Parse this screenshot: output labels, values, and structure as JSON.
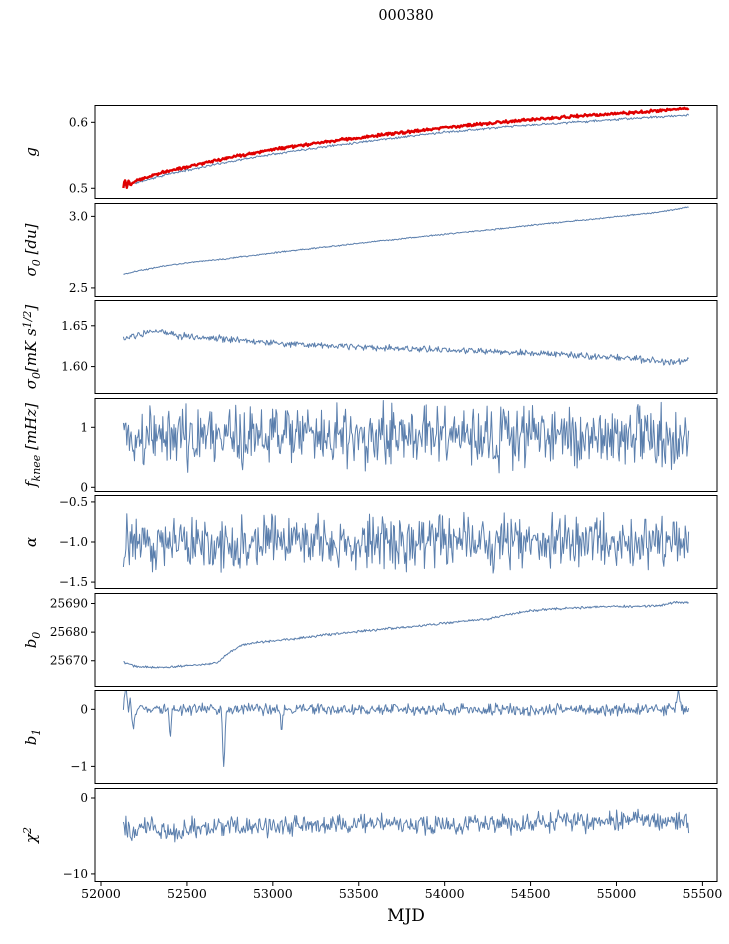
{
  "title": "000380",
  "xlabel": "MJD",
  "colors": {
    "blue": "#5b7fad",
    "red": "#e00000",
    "axis": "#000000"
  },
  "chart_data": {
    "type": "line",
    "x_start": 52130,
    "x_end": 55420,
    "n": 660,
    "xlim": [
      51965,
      55585
    ],
    "xticks": [
      {
        "v": 52000,
        "label": "52000"
      },
      {
        "v": 52500,
        "label": "52500"
      },
      {
        "v": 53000,
        "label": "53000"
      },
      {
        "v": 53500,
        "label": "53500"
      },
      {
        "v": 54000,
        "label": "54000"
      },
      {
        "v": 54500,
        "label": "54500"
      },
      {
        "v": 55000,
        "label": "55000"
      },
      {
        "v": 55500,
        "label": "55500"
      }
    ],
    "panels": [
      {
        "id": "g",
        "ylabel": "g",
        "ylim": [
          0.4845,
          0.6255
        ],
        "yticks": [
          {
            "v": 0.5,
            "label": "0.5"
          },
          {
            "v": 0.6,
            "label": "0.6"
          }
        ],
        "series": [
          {
            "name": "gain-secondary",
            "color": "blue",
            "width": 1,
            "noise": 0.002,
            "seed": 11,
            "anchors": [
              [
                52130,
                0.503
              ],
              [
                52200,
                0.508
              ],
              [
                52400,
                0.522
              ],
              [
                52700,
                0.538
              ],
              [
                53000,
                0.552
              ],
              [
                53300,
                0.563
              ],
              [
                53600,
                0.573
              ],
              [
                54000,
                0.585
              ],
              [
                54400,
                0.594
              ],
              [
                54800,
                0.601
              ],
              [
                55100,
                0.606
              ],
              [
                55420,
                0.611
              ]
            ]
          },
          {
            "name": "gain-primary",
            "color": "red",
            "width": 2.4,
            "noise": 0.0025,
            "seed": 12,
            "anchors": [
              [
                52130,
                0.502
              ],
              [
                52140,
                0.514
              ],
              [
                52150,
                0.5
              ],
              [
                52160,
                0.512
              ],
              [
                52172,
                0.503
              ],
              [
                52185,
                0.509
              ],
              [
                52200,
                0.512
              ],
              [
                52400,
                0.527
              ],
              [
                52700,
                0.544
              ],
              [
                53000,
                0.559
              ],
              [
                53300,
                0.57
              ],
              [
                53600,
                0.58
              ],
              [
                54000,
                0.592
              ],
              [
                54400,
                0.602
              ],
              [
                54800,
                0.61
              ],
              [
                55100,
                0.615
              ],
              [
                55420,
                0.621
              ]
            ]
          }
        ]
      },
      {
        "id": "sigma0-du",
        "ylabel": "σ_{0} [du]",
        "ylim": [
          2.44,
          3.09
        ],
        "yticks": [
          {
            "v": 2.5,
            "label": "2.5"
          },
          {
            "v": 3.0,
            "label": "3.0"
          }
        ],
        "series": [
          {
            "name": "sigma0-du",
            "color": "blue",
            "width": 1,
            "noise": 0.006,
            "seed": 21,
            "anchors": [
              [
                52140,
                2.597
              ],
              [
                52200,
                2.615
              ],
              [
                52350,
                2.65
              ],
              [
                52500,
                2.675
              ],
              [
                52700,
                2.7
              ],
              [
                53000,
                2.745
              ],
              [
                53300,
                2.785
              ],
              [
                53600,
                2.825
              ],
              [
                54000,
                2.875
              ],
              [
                54300,
                2.91
              ],
              [
                54600,
                2.95
              ],
              [
                54900,
                2.985
              ],
              [
                55100,
                3.01
              ],
              [
                55250,
                3.03
              ],
              [
                55420,
                3.065
              ]
            ]
          }
        ]
      },
      {
        "id": "sigma0-mks",
        "ylabel": "σ_{0}[mK s^{1/2}]",
        "ylim": [
          1.567,
          1.681
        ],
        "yticks": [
          {
            "v": 1.6,
            "label": "1.60"
          },
          {
            "v": 1.65,
            "label": "1.65"
          }
        ],
        "series": [
          {
            "name": "sigma0-mks",
            "color": "blue",
            "width": 1,
            "noise": 0.005,
            "seed": 31,
            "anchors": [
              [
                52140,
                1.634
              ],
              [
                52250,
                1.64
              ],
              [
                52350,
                1.644
              ],
              [
                52450,
                1.638
              ],
              [
                52600,
                1.636
              ],
              [
                52800,
                1.633
              ],
              [
                53000,
                1.629
              ],
              [
                53200,
                1.627
              ],
              [
                53400,
                1.625
              ],
              [
                53700,
                1.622
              ],
              [
                54000,
                1.62
              ],
              [
                54300,
                1.618
              ],
              [
                54600,
                1.616
              ],
              [
                54900,
                1.612
              ],
              [
                55100,
                1.61
              ],
              [
                55250,
                1.606
              ],
              [
                55350,
                1.605
              ],
              [
                55420,
                1.609
              ]
            ]
          }
        ]
      },
      {
        "id": "fknee",
        "ylabel": "f_{knee} [mHz]",
        "ylim": [
          -0.07,
          1.48
        ],
        "yticks": [
          {
            "v": 0,
            "label": "0"
          },
          {
            "v": 1,
            "label": "1"
          }
        ],
        "series": [
          {
            "name": "fknee",
            "color": "blue",
            "width": 1,
            "noise": 0.62,
            "seed": 41,
            "anchors": [
              [
                52130,
                0.85
              ],
              [
                55420,
                0.85
              ]
            ]
          }
        ]
      },
      {
        "id": "alpha",
        "ylabel": "α",
        "ylim": [
          -1.58,
          -0.42
        ],
        "yticks": [
          {
            "v": -0.5,
            "label": "−0.5"
          },
          {
            "v": -1.0,
            "label": "−1.0"
          },
          {
            "v": -1.5,
            "label": "−1.5"
          }
        ],
        "series": [
          {
            "name": "alpha",
            "color": "blue",
            "width": 1,
            "noise": 0.4,
            "seed": 51,
            "anchors": [
              [
                52130,
                -1.0
              ],
              [
                55420,
                -1.0
              ]
            ]
          }
        ]
      },
      {
        "id": "b0",
        "ylabel": "b_{0}",
        "ylim": [
          25661,
          25693.5
        ],
        "yticks": [
          {
            "v": 25670,
            "label": "25670"
          },
          {
            "v": 25680,
            "label": "25680"
          },
          {
            "v": 25690,
            "label": "25690"
          }
        ],
        "series": [
          {
            "name": "b0",
            "color": "blue",
            "width": 1,
            "noise": 0.5,
            "seed": 61,
            "anchors": [
              [
                52130,
                25669.5
              ],
              [
                52200,
                25668.0
              ],
              [
                52300,
                25667.6
              ],
              [
                52450,
                25668.0
              ],
              [
                52600,
                25668.6
              ],
              [
                52680,
                25669.5
              ],
              [
                52750,
                25673.0
              ],
              [
                52820,
                25675.5
              ],
              [
                52900,
                25676.3
              ],
              [
                53100,
                25677.5
              ],
              [
                53300,
                25679.0
              ],
              [
                53600,
                25680.8
              ],
              [
                53900,
                25682.5
              ],
              [
                54100,
                25683.8
              ],
              [
                54250,
                25684.5
              ],
              [
                54350,
                25686.0
              ],
              [
                54500,
                25687.5
              ],
              [
                54700,
                25688.3
              ],
              [
                54900,
                25688.8
              ],
              [
                55100,
                25689.0
              ],
              [
                55250,
                25689.3
              ],
              [
                55350,
                25690.5
              ],
              [
                55420,
                25690.3
              ]
            ]
          }
        ]
      },
      {
        "id": "b1",
        "ylabel": "b_{1}",
        "ylim": [
          -1.3,
          0.33
        ],
        "yticks": [
          {
            "v": 0,
            "label": "0"
          },
          {
            "v": -1,
            "label": "−1"
          }
        ],
        "series": [
          {
            "name": "b1",
            "color": "blue",
            "width": 1,
            "noise": 0.12,
            "seed": 71,
            "anchors": [
              [
                52130,
                0.0
              ],
              [
                52145,
                0.5
              ],
              [
                52158,
                -0.1
              ],
              [
                52170,
                0.15
              ],
              [
                52185,
                -0.3
              ],
              [
                52210,
                0.05
              ],
              [
                52300,
                0.0
              ],
              [
                52390,
                0.0
              ],
              [
                52402,
                -0.6
              ],
              [
                52415,
                0.0
              ],
              [
                52700,
                0.0
              ],
              [
                52715,
                -1.15
              ],
              [
                52728,
                0.0
              ],
              [
                53040,
                0.0
              ],
              [
                53052,
                -0.38
              ],
              [
                53065,
                0.0
              ],
              [
                54000,
                0.0
              ],
              [
                55340,
                0.0
              ],
              [
                55360,
                0.3
              ],
              [
                55380,
                0.0
              ],
              [
                55420,
                0.0
              ]
            ]
          }
        ]
      },
      {
        "id": "chi2",
        "ylabel": "χ^{2}",
        "ylim": [
          -11.0,
          1.25
        ],
        "yticks": [
          {
            "v": 0,
            "label": "0"
          },
          {
            "v": -10,
            "label": "−10"
          }
        ],
        "series": [
          {
            "name": "chi2",
            "color": "blue",
            "width": 1,
            "noise": 1.6,
            "seed": 81,
            "anchors": [
              [
                52130,
                -3.4
              ],
              [
                52190,
                -4.6
              ],
              [
                52260,
                -3.7
              ],
              [
                52350,
                -4.0
              ],
              [
                52430,
                -4.8
              ],
              [
                52520,
                -3.8
              ],
              [
                52650,
                -4.1
              ],
              [
                52800,
                -3.7
              ],
              [
                53000,
                -3.8
              ],
              [
                53200,
                -3.4
              ],
              [
                53400,
                -3.7
              ],
              [
                53600,
                -3.3
              ],
              [
                53800,
                -3.6
              ],
              [
                54000,
                -3.5
              ],
              [
                54200,
                -3.2
              ],
              [
                54400,
                -3.5
              ],
              [
                54600,
                -3.1
              ],
              [
                54800,
                -3.3
              ],
              [
                55000,
                -3.0
              ],
              [
                55150,
                -2.7
              ],
              [
                55300,
                -3.1
              ],
              [
                55420,
                -3.3
              ]
            ]
          }
        ]
      }
    ]
  }
}
